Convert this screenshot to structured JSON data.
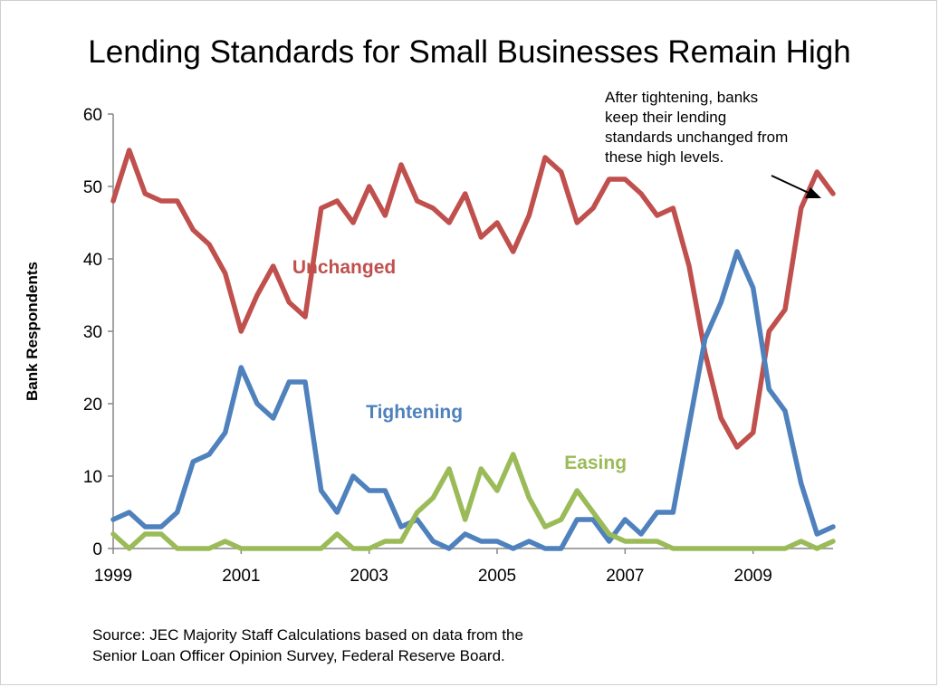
{
  "chart_data": {
    "type": "line",
    "title": "Lending Standards for Small Businesses Remain High",
    "ylabel": "Bank Respondents",
    "xlabel": "",
    "ylim": [
      0,
      60
    ],
    "yticks": [
      0,
      10,
      20,
      30,
      40,
      50,
      60
    ],
    "xlim": [
      1999,
      2010.25
    ],
    "xticks": [
      1999,
      2001,
      2003,
      2005,
      2007,
      2009
    ],
    "grid": false,
    "x": [
      1999.0,
      1999.25,
      1999.5,
      1999.75,
      2000.0,
      2000.25,
      2000.5,
      2000.75,
      2001.0,
      2001.25,
      2001.5,
      2001.75,
      2002.0,
      2002.25,
      2002.5,
      2002.75,
      2003.0,
      2003.25,
      2003.5,
      2003.75,
      2004.0,
      2004.25,
      2004.5,
      2004.75,
      2005.0,
      2005.25,
      2005.5,
      2005.75,
      2006.0,
      2006.25,
      2006.5,
      2006.75,
      2007.0,
      2007.25,
      2007.5,
      2007.75,
      2008.0,
      2008.25,
      2008.5,
      2008.75,
      2009.0,
      2009.25,
      2009.5,
      2009.75,
      2010.0,
      2010.25
    ],
    "series": [
      {
        "name": "Unchanged",
        "color": "#C0504D",
        "label_pos": [
          2001.8,
          38
        ],
        "values": [
          48,
          55,
          49,
          48,
          48,
          44,
          42,
          38,
          30,
          35,
          39,
          34,
          32,
          47,
          48,
          45,
          50,
          46,
          53,
          48,
          47,
          45,
          49,
          43,
          45,
          41,
          46,
          54,
          52,
          45,
          47,
          51,
          51,
          49,
          46,
          47,
          39,
          27,
          18,
          14,
          16,
          30,
          33,
          47,
          52,
          49
        ]
      },
      {
        "name": "Tightening",
        "color": "#4F81BD",
        "label_pos": [
          2002.95,
          18
        ],
        "values": [
          4,
          5,
          3,
          3,
          5,
          12,
          13,
          16,
          25,
          20,
          18,
          23,
          23,
          8,
          5,
          10,
          8,
          8,
          3,
          4,
          1,
          0,
          2,
          1,
          1,
          0,
          1,
          0,
          0,
          4,
          4,
          1,
          4,
          2,
          5,
          5,
          17,
          29,
          34,
          41,
          36,
          22,
          19,
          9,
          2,
          3
        ]
      },
      {
        "name": "Easing",
        "color": "#9BBB59",
        "label_pos": [
          2006.05,
          11
        ],
        "values": [
          2,
          0,
          2,
          2,
          0,
          0,
          0,
          1,
          0,
          0,
          0,
          0,
          0,
          0,
          2,
          0,
          0,
          1,
          1,
          5,
          7,
          11,
          4,
          11,
          8,
          13,
          7,
          3,
          4,
          8,
          5,
          2,
          1,
          1,
          1,
          0,
          0,
          0,
          0,
          0,
          0,
          0,
          0,
          1,
          0,
          1
        ]
      }
    ],
    "annotation": {
      "lines": [
        "After tightening, banks",
        "keep their lending",
        "standards unchanged from",
        "these high levels."
      ]
    }
  },
  "source": {
    "line1": "Source: JEC Majority Staff Calculations based on data from the",
    "line2": "Senior Loan Officer Opinion Survey, Federal Reserve Board."
  }
}
